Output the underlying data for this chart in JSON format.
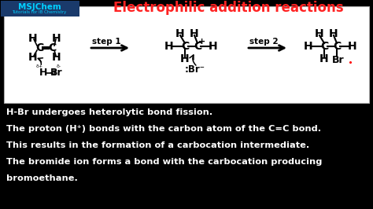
{
  "title": "Electrophilic addition reactions",
  "title_color": "#FF2222",
  "background_color": "#000000",
  "diagram_bg": "#FFFFFF",
  "logo_text1": "MSJChem",
  "logo_text2": "Tutorials for IB Chemistry",
  "text_lines": [
    "H-Br undergoes heterolytic bond fission.",
    "The proton (H⁺) bonds with the carbon atom of the C=C bond.",
    "This results in the formation of a carbocation intermediate.",
    "The bromide ion forms a bond with the carbocation producing",
    "bromoethane."
  ],
  "step1_label": "step 1",
  "step2_label": "step 2",
  "figsize": [
    4.74,
    2.66
  ],
  "dpi": 100
}
